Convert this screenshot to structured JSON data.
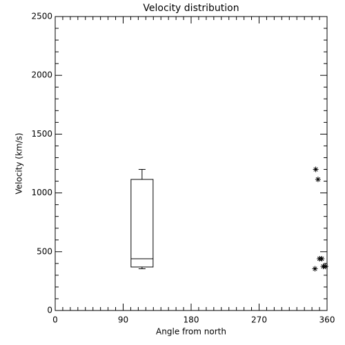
{
  "chart_data": {
    "type": "box",
    "title": "Velocity distribution",
    "x_label": "Angle from north",
    "y_label": "Velocity (km/s)",
    "xlim": [
      0,
      360
    ],
    "xticks": [
      0,
      90,
      180,
      270,
      360
    ],
    "x_minor_divisions": 9,
    "ylim": [
      0,
      2500
    ],
    "yticks": [
      0,
      500,
      1000,
      1500,
      2000,
      2500
    ],
    "y_minor_divisions": 5,
    "color": "#000000",
    "boxes": [
      {
        "x": 115,
        "whislo": 355,
        "q1": 370,
        "med": 440,
        "q3": 1115,
        "whishi": 1200
      }
    ],
    "points": {
      "x": [
        345,
        348,
        350,
        353,
        344,
        355,
        358
      ],
      "y": [
        1200,
        1115,
        440,
        440,
        355,
        375,
        375
      ]
    }
  }
}
